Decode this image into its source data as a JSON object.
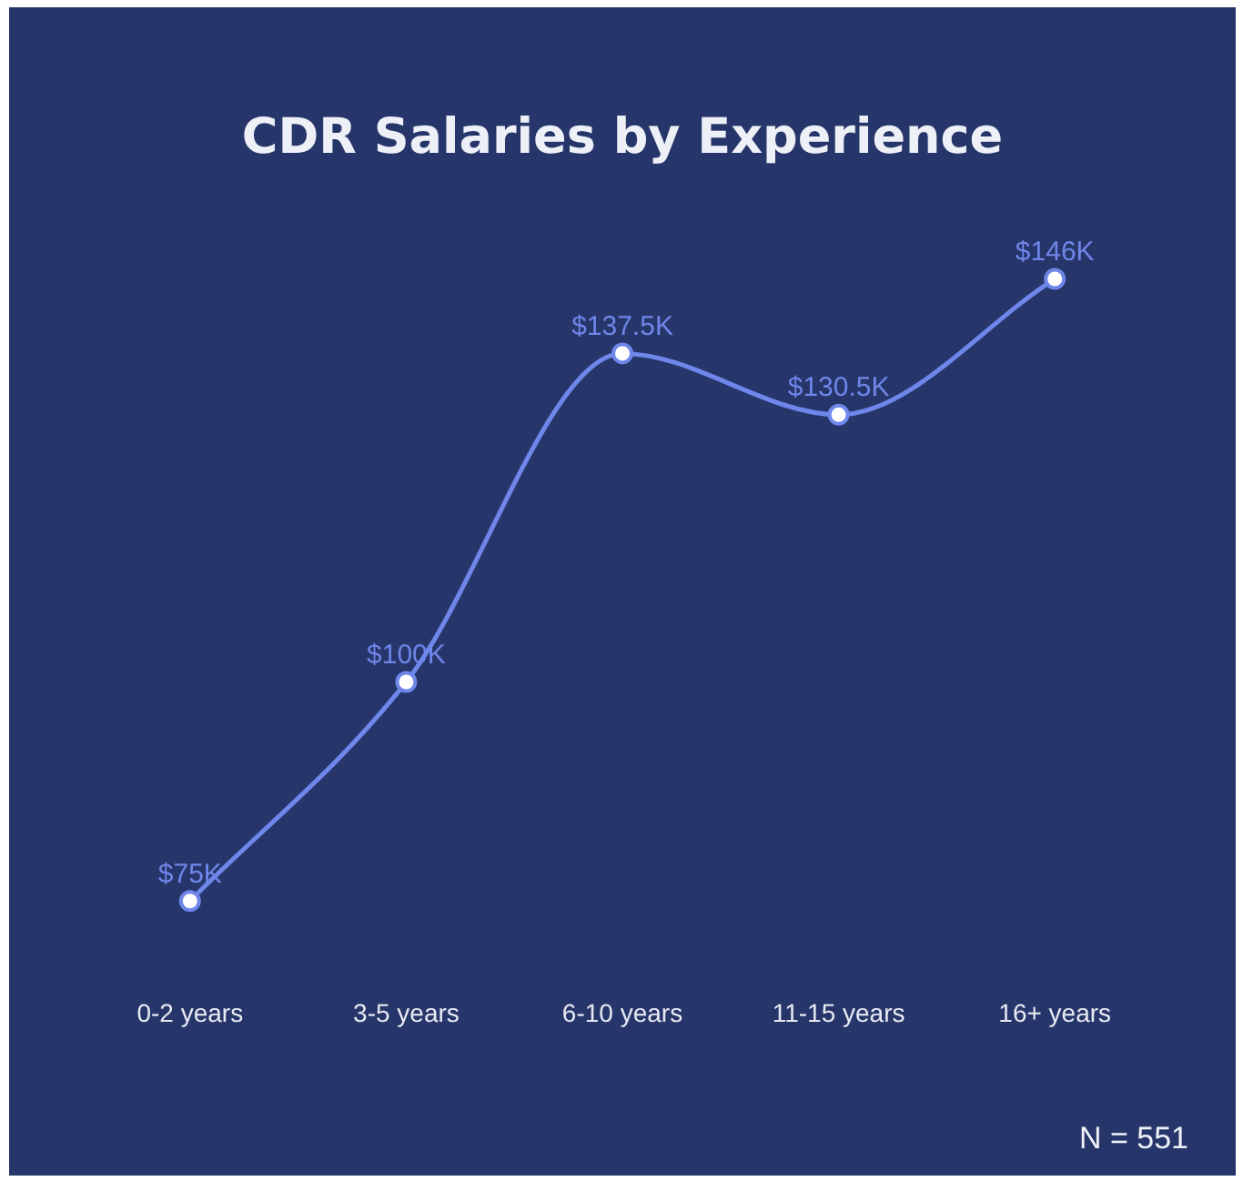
{
  "chart_data": {
    "type": "line",
    "title": "CDR Salaries by Experience",
    "categories": [
      "0-2 years",
      "3-5 years",
      "6-10 years",
      "11-15 years",
      "16+ years"
    ],
    "series": [
      {
        "color": "#6f86ea",
        "values": [
          75,
          100,
          137.5,
          130.5,
          146
        ],
        "value_labels": [
          "$75K",
          "$100K",
          "$137.5K",
          "$130.5K",
          "$146K"
        ]
      }
    ],
    "marker": "circle",
    "line_style": "solid",
    "grid": false,
    "legend": false,
    "tick_labels": "x",
    "annotations": [
      "N = 551"
    ]
  }
}
